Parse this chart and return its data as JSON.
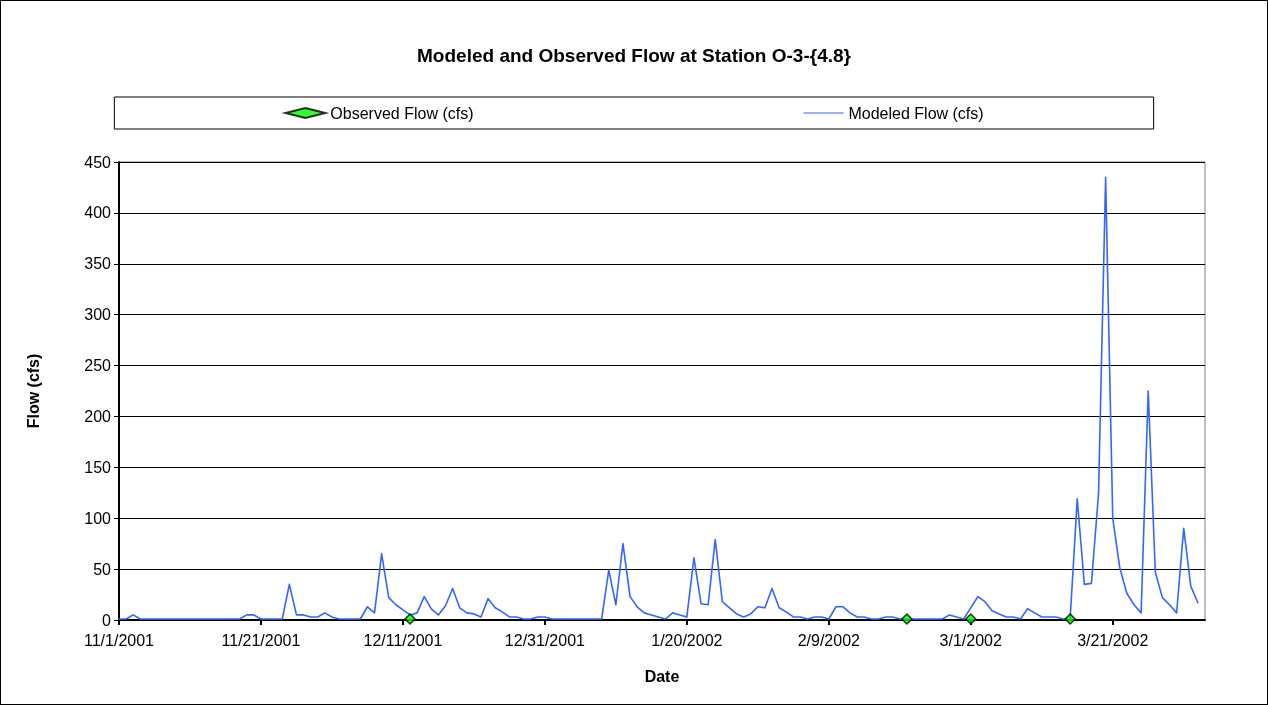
{
  "chart_data": {
    "type": "line",
    "title": "Modeled and Observed Flow at Station O-3-{4.8}",
    "xlabel": "Date",
    "ylabel": "Flow (cfs)",
    "xlim": [
      "2001-11-01",
      "2002-04-03"
    ],
    "xticks": [
      {
        "value": "2001-11-01",
        "label": "11/1/2001"
      },
      {
        "value": "2001-11-21",
        "label": "11/21/2001"
      },
      {
        "value": "2001-12-11",
        "label": "12/11/2001"
      },
      {
        "value": "2001-12-31",
        "label": "12/31/2001"
      },
      {
        "value": "2002-01-20",
        "label": "1/20/2002"
      },
      {
        "value": "2002-02-09",
        "label": "2/9/2002"
      },
      {
        "value": "2002-03-01",
        "label": "3/1/2002"
      },
      {
        "value": "2002-03-21",
        "label": "3/21/2002"
      }
    ],
    "ylim": [
      0,
      450
    ],
    "yticks": [
      0,
      50,
      100,
      150,
      200,
      250,
      300,
      350,
      400,
      450
    ],
    "grid": "y",
    "legend": "top",
    "series": [
      {
        "name": "Observed Flow (cfs)",
        "type": "scatter",
        "marker": "diamond",
        "color": "#00ff00",
        "x": [
          "2001-12-12",
          "2002-02-20",
          "2002-03-01",
          "2002-03-15"
        ],
        "values": [
          1,
          1,
          1,
          1
        ]
      },
      {
        "name": "Modeled Flow (cfs)",
        "type": "line",
        "marker": "none",
        "line_style": "solid",
        "color": "#3366ff",
        "x": [
          "2001-11-01",
          "2001-11-02",
          "2001-11-03",
          "2001-11-04",
          "2001-11-18",
          "2001-11-19",
          "2001-11-20",
          "2001-11-21",
          "2001-11-24",
          "2001-11-25",
          "2001-11-26",
          "2001-11-27",
          "2001-11-28",
          "2001-11-29",
          "2001-11-30",
          "2001-12-01",
          "2001-12-02",
          "2001-12-05",
          "2001-12-06",
          "2001-12-07",
          "2001-12-08",
          "2001-12-09",
          "2001-12-10",
          "2001-12-11",
          "2001-12-12",
          "2001-12-13",
          "2001-12-14",
          "2001-12-15",
          "2001-12-16",
          "2001-12-17",
          "2001-12-18",
          "2001-12-19",
          "2001-12-20",
          "2001-12-21",
          "2001-12-22",
          "2001-12-23",
          "2001-12-24",
          "2001-12-25",
          "2001-12-26",
          "2001-12-27",
          "2001-12-28",
          "2001-12-29",
          "2001-12-30",
          "2001-12-31",
          "2002-01-01",
          "2002-01-08",
          "2002-01-09",
          "2002-01-10",
          "2002-01-11",
          "2002-01-12",
          "2002-01-13",
          "2002-01-14",
          "2002-01-15",
          "2002-01-16",
          "2002-01-17",
          "2002-01-18",
          "2002-01-19",
          "2002-01-20",
          "2002-01-21",
          "2002-01-22",
          "2002-01-23",
          "2002-01-24",
          "2002-01-25",
          "2002-01-26",
          "2002-01-27",
          "2002-01-28",
          "2002-01-29",
          "2002-01-30",
          "2002-01-31",
          "2002-02-01",
          "2002-02-02",
          "2002-02-03",
          "2002-02-04",
          "2002-02-05",
          "2002-02-06",
          "2002-02-07",
          "2002-02-08",
          "2002-02-09",
          "2002-02-10",
          "2002-02-11",
          "2002-02-12",
          "2002-02-13",
          "2002-02-14",
          "2002-02-15",
          "2002-02-16",
          "2002-02-17",
          "2002-02-18",
          "2002-02-19",
          "2002-02-25",
          "2002-02-26",
          "2002-02-27",
          "2002-02-28",
          "2002-03-02",
          "2002-03-03",
          "2002-03-04",
          "2002-03-05",
          "2002-03-06",
          "2002-03-07",
          "2002-03-08",
          "2002-03-09",
          "2002-03-10",
          "2002-03-11",
          "2002-03-13",
          "2002-03-14",
          "2002-03-15",
          "2002-03-16",
          "2002-03-17",
          "2002-03-18",
          "2002-03-19",
          "2002-03-20",
          "2002-03-21",
          "2002-03-22",
          "2002-03-23",
          "2002-03-24",
          "2002-03-25",
          "2002-03-26",
          "2002-03-27",
          "2002-03-28",
          "2002-03-29",
          "2002-03-30",
          "2002-03-31",
          "2002-04-01",
          "2002-04-02"
        ],
        "values": [
          1,
          1,
          5,
          1,
          1,
          5,
          5,
          1,
          1,
          35,
          5,
          5,
          3,
          3,
          7,
          3,
          1,
          1,
          13,
          7,
          65,
          22,
          15,
          10,
          5,
          7,
          23,
          11,
          5,
          14,
          31,
          12,
          7,
          6,
          3,
          21,
          12,
          8,
          3,
          3,
          1,
          1,
          3,
          3,
          1,
          1,
          49,
          15,
          75,
          23,
          13,
          7,
          5,
          3,
          1,
          7,
          5,
          3,
          61,
          16,
          15,
          79,
          18,
          12,
          6,
          3,
          6,
          13,
          12,
          31,
          12,
          8,
          3,
          3,
          1,
          3,
          3,
          1,
          13,
          13,
          7,
          3,
          3,
          1,
          1,
          3,
          3,
          1,
          1,
          5,
          3,
          1,
          23,
          18,
          9,
          6,
          3,
          3,
          1,
          11,
          7,
          3,
          3,
          1,
          1,
          119,
          35,
          36,
          124,
          435,
          100,
          51,
          26,
          15,
          7,
          225,
          47,
          22,
          15,
          7,
          90,
          33,
          17
        ]
      }
    ]
  }
}
